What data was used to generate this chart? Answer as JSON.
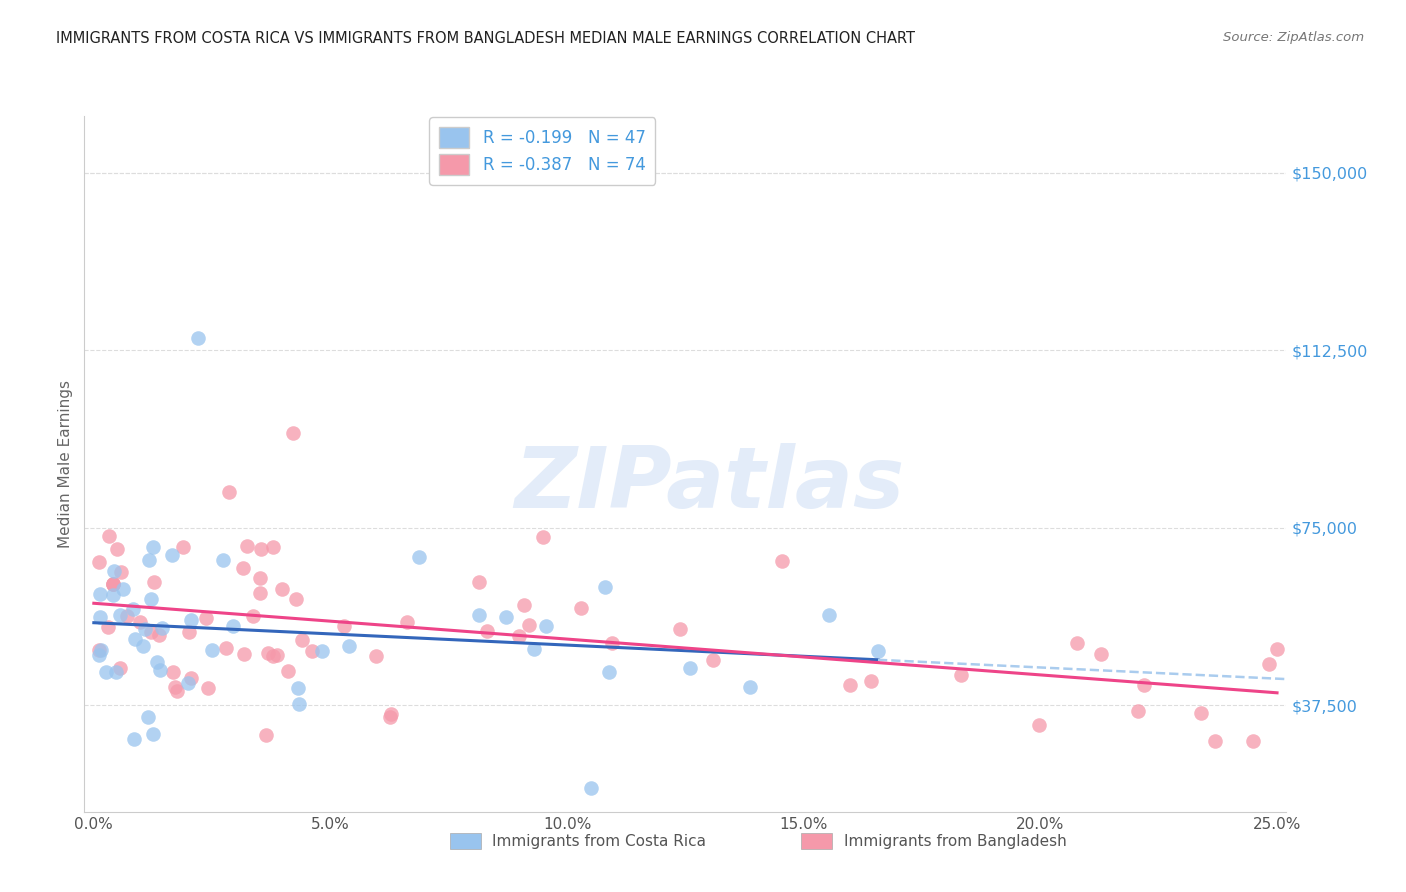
{
  "title": "IMMIGRANTS FROM COSTA RICA VS IMMIGRANTS FROM BANGLADESH MEDIAN MALE EARNINGS CORRELATION CHART",
  "source": "Source: ZipAtlas.com",
  "ylabel": "Median Male Earnings",
  "xlabel_ticks": [
    "0.0%",
    "5.0%",
    "10.0%",
    "15.0%",
    "20.0%",
    "25.0%"
  ],
  "xlabel_vals": [
    0.0,
    0.05,
    0.1,
    0.15,
    0.2,
    0.25
  ],
  "ytick_labels": [
    "$37,500",
    "$75,000",
    "$112,500",
    "$150,000"
  ],
  "ytick_vals": [
    37500,
    75000,
    112500,
    150000
  ],
  "ylim": [
    15000,
    162000
  ],
  "xlim": [
    -0.002,
    0.252
  ],
  "watermark_text": "ZIPatlas",
  "legend_label_blue": "Immigrants from Costa Rica",
  "legend_label_pink": "Immigrants from Bangladesh",
  "blue_color": "#99c4ee",
  "pink_color": "#f599aa",
  "blue_line_color": "#3366bb",
  "pink_line_color": "#ee4488",
  "dashed_line_color": "#aaccee",
  "title_color": "#222222",
  "right_axis_color": "#4499dd",
  "source_color": "#777777",
  "grid_color": "#dddddd",
  "bottom_label_color": "#555555"
}
